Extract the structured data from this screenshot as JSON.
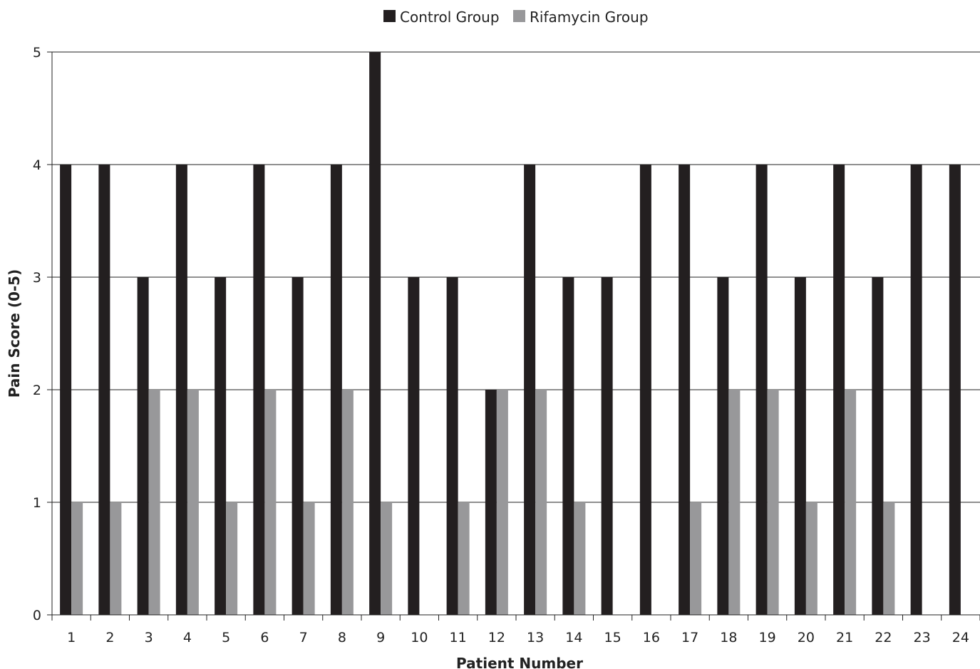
{
  "chart_data": {
    "type": "bar",
    "title": "",
    "xlabel": "Patient Number",
    "ylabel": "Pain Score (0-5)",
    "ylim": [
      0,
      5
    ],
    "yticks": [
      "0",
      "1",
      "2",
      "3",
      "4",
      "5"
    ],
    "grid": true,
    "legend_position": "top-center",
    "categories": [
      "1",
      "2",
      "3",
      "4",
      "5",
      "6",
      "7",
      "8",
      "9",
      "10",
      "11",
      "12",
      "13",
      "14",
      "15",
      "16",
      "17",
      "18",
      "19",
      "20",
      "21",
      "22",
      "23",
      "24"
    ],
    "series": [
      {
        "name": "Control Group",
        "color": "#231f20",
        "values": [
          4,
          4,
          3,
          4,
          3,
          4,
          3,
          4,
          5,
          3,
          3,
          2,
          4,
          3,
          3,
          4,
          4,
          3,
          4,
          3,
          4,
          3,
          4,
          4
        ]
      },
      {
        "name": "Rifamycin Group",
        "color": "#98989a",
        "values": [
          1,
          1,
          2,
          2,
          1,
          2,
          1,
          2,
          1,
          0,
          1,
          2,
          2,
          1,
          0,
          0,
          1,
          2,
          2,
          1,
          2,
          1,
          0,
          0
        ]
      }
    ]
  }
}
